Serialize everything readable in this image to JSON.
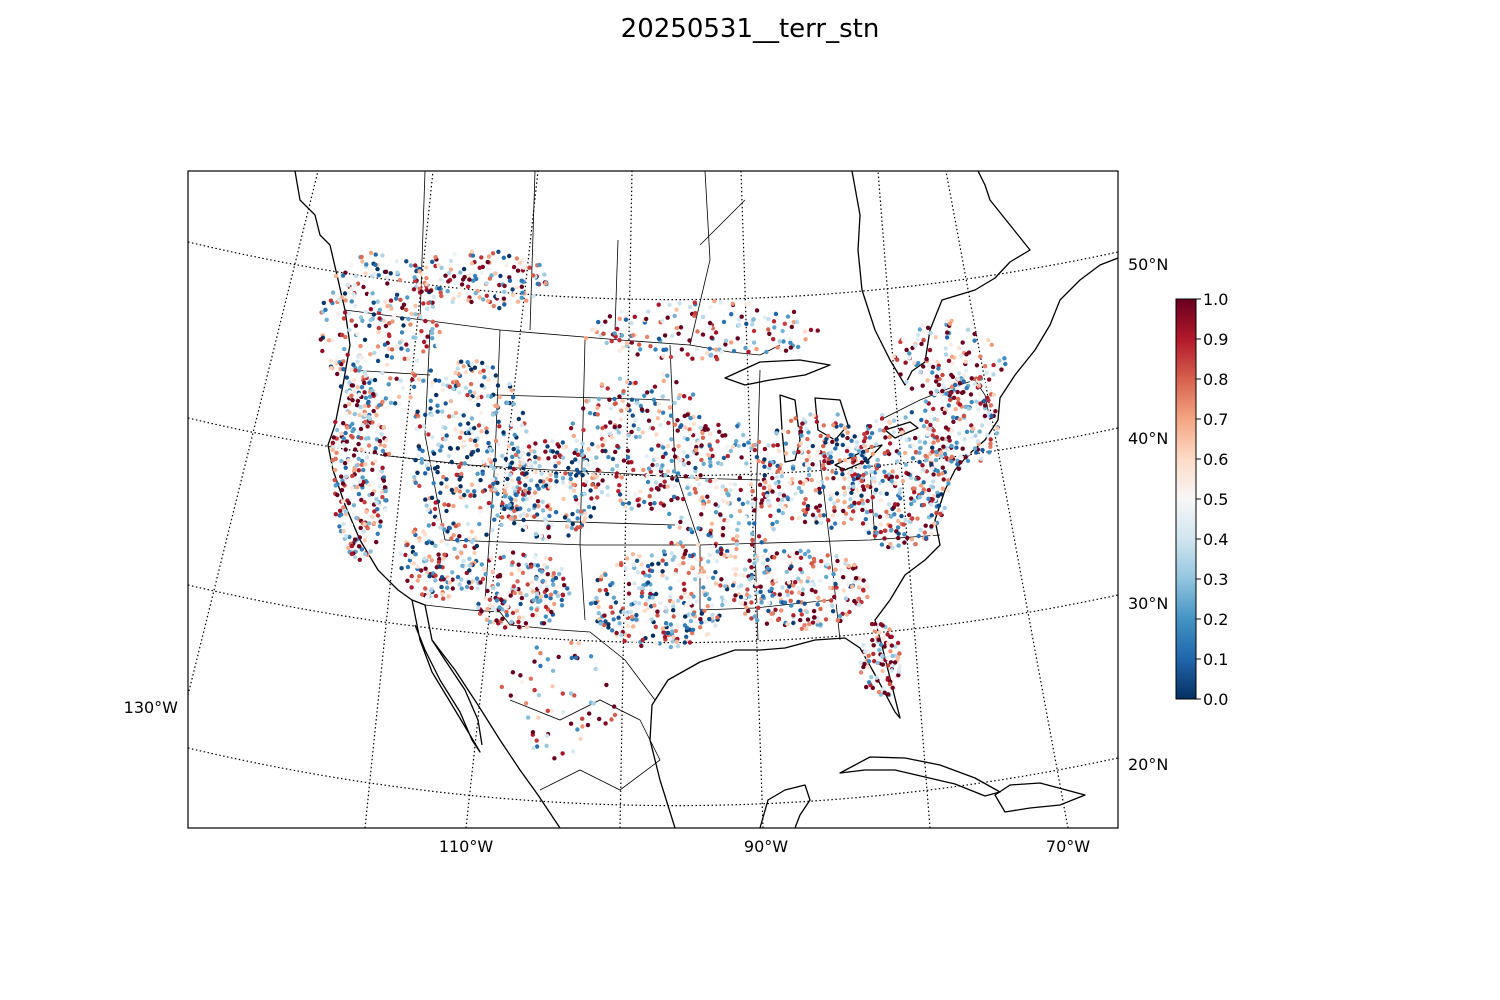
{
  "title": "20250531__terr_stn",
  "map": {
    "projection": "lambert-conformal-conic",
    "lat_labels": [
      "50°N",
      "40°N",
      "30°N",
      "20°N"
    ],
    "lon_labels_bottom": [
      "110°W",
      "90°W",
      "70°W"
    ],
    "lon_labels_left": [
      "130°W"
    ],
    "gridlines": "dotted",
    "coastline_color": "#000000"
  },
  "colorbar": {
    "colormap": "RdBu_r",
    "min": 0.0,
    "max": 1.0,
    "ticks": [
      "0.0",
      "0.1",
      "0.2",
      "0.3",
      "0.4",
      "0.5",
      "0.6",
      "0.7",
      "0.8",
      "0.9",
      "1.0"
    ],
    "low_color": "#053061",
    "mid_color": "#f7f7f7",
    "high_color": "#67001f"
  },
  "stations": {
    "value_range": [
      0.0,
      1.0
    ],
    "dense_regions": [
      "US West Coast",
      "Pacific Northwest",
      "Rocky Mountains",
      "Eastern US",
      "Florida"
    ]
  }
}
